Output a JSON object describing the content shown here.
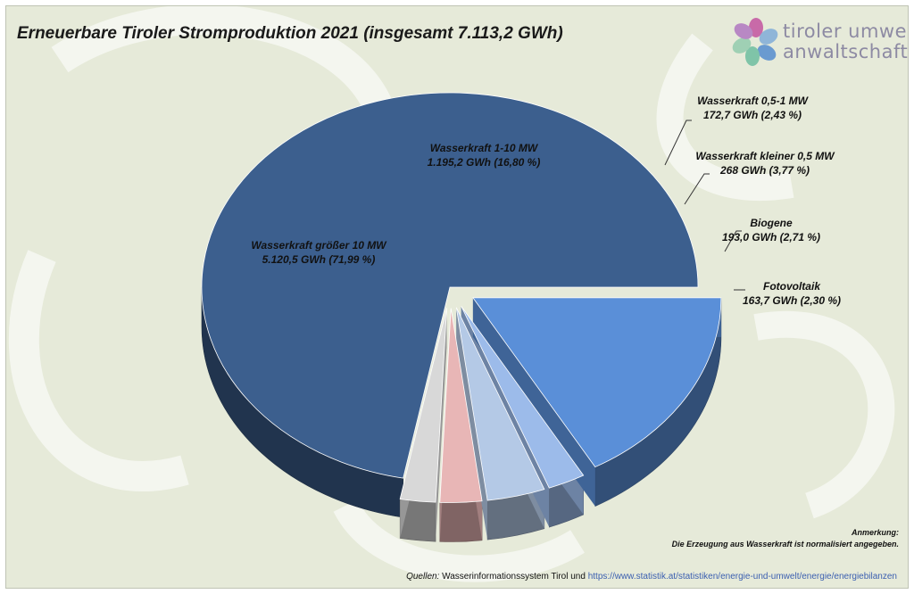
{
  "chart_data": {
    "type": "pie",
    "title": "Erneuerbare Tiroler Stromproduktion 2021 (insgesamt 7.113,2 GWh)",
    "unit": "GWh",
    "slices": [
      {
        "name": "Wasserkraft größer 10 MW",
        "value": 5120.5,
        "percent": 71.99,
        "label": "5.120,5 GWh (71,99 %)",
        "color": "#3c5f8e",
        "exploded": false
      },
      {
        "name": "Fotovoltaik",
        "value": 163.7,
        "percent": 2.3,
        "label": "163,7 GWh (2,30 %)",
        "color": "#d8d8d8",
        "exploded": true
      },
      {
        "name": "Biogene",
        "value": 193.0,
        "percent": 2.71,
        "label": "193,0 GWh (2,71 %)",
        "color": "#e8b6b6",
        "exploded": true
      },
      {
        "name": "Wasserkraft kleiner 0,5 MW",
        "value": 268,
        "percent": 3.77,
        "label": "268 GWh (3,77 %)",
        "color": "#b4c9e6",
        "exploded": true
      },
      {
        "name": "Wasserkraft 0,5-1 MW",
        "value": 172.7,
        "percent": 2.43,
        "label": "172,7 GWh (2,43 %)",
        "color": "#9cbbea",
        "exploded": true
      },
      {
        "name": "Wasserkraft 1-10 MW",
        "value": 1195.2,
        "percent": 16.8,
        "label": "1.195,2 GWh (16,80 %)",
        "color": "#5a8fd8",
        "exploded": true
      }
    ]
  },
  "logo": {
    "line1": "tiroler umwelt",
    "line2": "anwaltschaft"
  },
  "note": {
    "heading": "Anmerkung:",
    "text": "Die Erzeugung aus Wasserkraft ist normalisiert angegeben."
  },
  "sources": {
    "label": "Quellen:",
    "text": "Wasserinformationssystem Tirol und",
    "link": "https://www.statistik.at/statistiken/energie-und-umwelt/energie/energiebilanzen"
  }
}
